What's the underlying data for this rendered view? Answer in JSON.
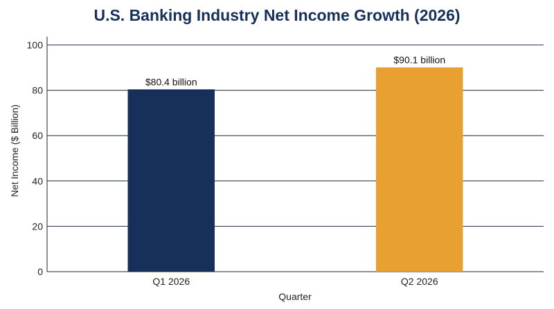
{
  "chart_data": {
    "type": "bar",
    "title": "U.S. Banking Industry Net Income Growth (2026)",
    "xlabel": "Quarter",
    "ylabel": "Net Income ($ Billion)",
    "ylim": [
      0,
      100
    ],
    "yticks": [
      0,
      20,
      40,
      60,
      80,
      100
    ],
    "categories": [
      "Q1 2026",
      "Q2 2026"
    ],
    "values": [
      80.4,
      90.1
    ],
    "data_labels": [
      "$80.4 billion",
      "$90.1 billion"
    ],
    "bar_colors": [
      "#16305a",
      "#e8a031"
    ],
    "grid": true,
    "legend": "none"
  }
}
